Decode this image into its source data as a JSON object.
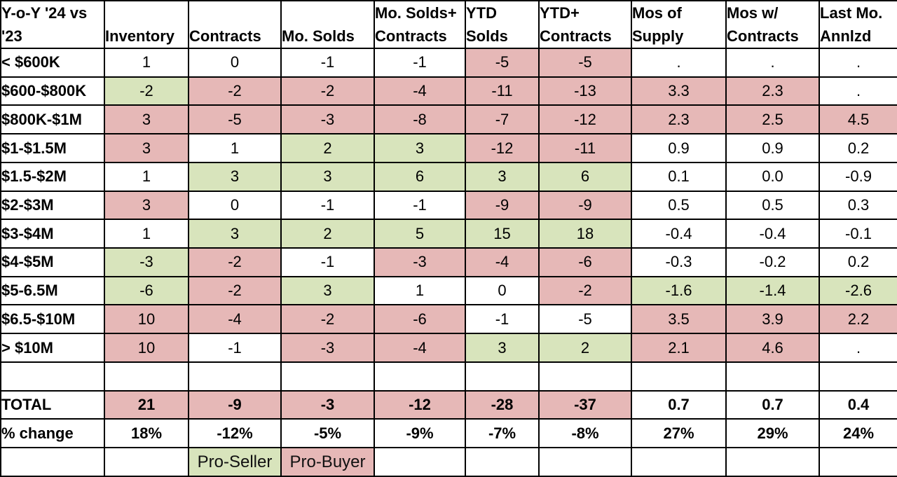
{
  "chart_data": {
    "type": "table",
    "title": "Y-o-Y '24 vs '23",
    "title_lines": [
      "Y-o-Y '24 vs",
      "'23"
    ],
    "column_headers": [
      {
        "lines": [
          "Inventory"
        ]
      },
      {
        "lines": [
          "Contracts"
        ]
      },
      {
        "lines": [
          "Mo. Solds"
        ]
      },
      {
        "lines": [
          "Mo. Solds+",
          "Contracts"
        ]
      },
      {
        "lines": [
          "YTD",
          "Solds"
        ]
      },
      {
        "lines": [
          "YTD+",
          "Contracts"
        ]
      },
      {
        "lines": [
          "Mos of",
          "Supply"
        ]
      },
      {
        "lines": [
          "Mos w/",
          "Contracts"
        ]
      },
      {
        "lines": [
          "Last Mo.",
          "Annlzd"
        ]
      }
    ],
    "rows": [
      {
        "label": "< $600K",
        "cells": [
          [
            "1",
            "w"
          ],
          [
            "0",
            "w"
          ],
          [
            "-1",
            "w"
          ],
          [
            "-1",
            "w"
          ],
          [
            "-5",
            "r"
          ],
          [
            "-5",
            "r"
          ],
          [
            ".",
            "w"
          ],
          [
            ".",
            "w"
          ],
          [
            ".",
            "w"
          ]
        ]
      },
      {
        "label": "$600-$800K",
        "cells": [
          [
            "-2",
            "g"
          ],
          [
            "-2",
            "r"
          ],
          [
            "-2",
            "r"
          ],
          [
            "-4",
            "r"
          ],
          [
            "-11",
            "r"
          ],
          [
            "-13",
            "r"
          ],
          [
            "3.3",
            "r"
          ],
          [
            "2.3",
            "r"
          ],
          [
            ".",
            "w"
          ]
        ]
      },
      {
        "label": "$800K-$1M",
        "cells": [
          [
            "3",
            "r"
          ],
          [
            "-5",
            "r"
          ],
          [
            "-3",
            "r"
          ],
          [
            "-8",
            "r"
          ],
          [
            "-7",
            "r"
          ],
          [
            "-12",
            "r"
          ],
          [
            "2.3",
            "r"
          ],
          [
            "2.5",
            "r"
          ],
          [
            "4.5",
            "r"
          ]
        ]
      },
      {
        "label": "$1-$1.5M",
        "cells": [
          [
            "3",
            "r"
          ],
          [
            "1",
            "w"
          ],
          [
            "2",
            "g"
          ],
          [
            "3",
            "g"
          ],
          [
            "-12",
            "r"
          ],
          [
            "-11",
            "r"
          ],
          [
            "0.9",
            "w"
          ],
          [
            "0.9",
            "w"
          ],
          [
            "0.2",
            "w"
          ]
        ]
      },
      {
        "label": "$1.5-$2M",
        "cells": [
          [
            "1",
            "w"
          ],
          [
            "3",
            "g"
          ],
          [
            "3",
            "g"
          ],
          [
            "6",
            "g"
          ],
          [
            "3",
            "g"
          ],
          [
            "6",
            "g"
          ],
          [
            "0.1",
            "w"
          ],
          [
            "0.0",
            "w"
          ],
          [
            "-0.9",
            "w"
          ]
        ]
      },
      {
        "label": "$2-$3M",
        "cells": [
          [
            "3",
            "r"
          ],
          [
            "0",
            "w"
          ],
          [
            "-1",
            "w"
          ],
          [
            "-1",
            "w"
          ],
          [
            "-9",
            "r"
          ],
          [
            "-9",
            "r"
          ],
          [
            "0.5",
            "w"
          ],
          [
            "0.5",
            "w"
          ],
          [
            "0.3",
            "w"
          ]
        ]
      },
      {
        "label": "$3-$4M",
        "cells": [
          [
            "1",
            "w"
          ],
          [
            "3",
            "g"
          ],
          [
            "2",
            "g"
          ],
          [
            "5",
            "g"
          ],
          [
            "15",
            "g"
          ],
          [
            "18",
            "g"
          ],
          [
            "-0.4",
            "w"
          ],
          [
            "-0.4",
            "w"
          ],
          [
            "-0.1",
            "w"
          ]
        ]
      },
      {
        "label": "$4-$5M",
        "cells": [
          [
            "-3",
            "g"
          ],
          [
            "-2",
            "r"
          ],
          [
            "-1",
            "w"
          ],
          [
            "-3",
            "r"
          ],
          [
            "-4",
            "r"
          ],
          [
            "-6",
            "r"
          ],
          [
            "-0.3",
            "w"
          ],
          [
            "-0.2",
            "w"
          ],
          [
            "0.2",
            "w"
          ]
        ]
      },
      {
        "label": "$5-6.5M",
        "cells": [
          [
            "-6",
            "g"
          ],
          [
            "-2",
            "r"
          ],
          [
            "3",
            "g"
          ],
          [
            "1",
            "w"
          ],
          [
            "0",
            "w"
          ],
          [
            "-2",
            "r"
          ],
          [
            "-1.6",
            "g"
          ],
          [
            "-1.4",
            "g"
          ],
          [
            "-2.6",
            "g"
          ]
        ]
      },
      {
        "label": "$6.5-$10M",
        "cells": [
          [
            "10",
            "r"
          ],
          [
            "-4",
            "r"
          ],
          [
            "-2",
            "r"
          ],
          [
            "-6",
            "r"
          ],
          [
            "-1",
            "w"
          ],
          [
            "-5",
            "w"
          ],
          [
            "3.5",
            "r"
          ],
          [
            "3.9",
            "r"
          ],
          [
            "2.2",
            "r"
          ]
        ]
      },
      {
        "label": "> $10M",
        "cells": [
          [
            "10",
            "r"
          ],
          [
            "-1",
            "w"
          ],
          [
            "-3",
            "r"
          ],
          [
            "-4",
            "r"
          ],
          [
            "3",
            "g"
          ],
          [
            "2",
            "g"
          ],
          [
            "2.1",
            "r"
          ],
          [
            "4.6",
            "r"
          ],
          [
            ".",
            "w"
          ]
        ]
      }
    ],
    "spacer_row": {
      "label": "",
      "cells": [
        [
          "",
          "w"
        ],
        [
          "",
          "w"
        ],
        [
          "",
          "w"
        ],
        [
          "",
          "w"
        ],
        [
          "",
          "w"
        ],
        [
          "",
          "w"
        ],
        [
          "",
          "w"
        ],
        [
          "",
          "w"
        ],
        [
          "",
          "w"
        ]
      ]
    },
    "total_row": {
      "label": "TOTAL",
      "cells": [
        [
          "21",
          "r"
        ],
        [
          "-9",
          "r"
        ],
        [
          "-3",
          "r"
        ],
        [
          "-12",
          "r"
        ],
        [
          "-28",
          "r"
        ],
        [
          "-37",
          "r"
        ],
        [
          "0.7",
          "w"
        ],
        [
          "0.7",
          "w"
        ],
        [
          "0.4",
          "w"
        ]
      ]
    },
    "pct_change_row": {
      "label": "% change",
      "cells": [
        [
          "18%",
          "w"
        ],
        [
          "-12%",
          "w"
        ],
        [
          "-5%",
          "w"
        ],
        [
          "-9%",
          "w"
        ],
        [
          "-7%",
          "w"
        ],
        [
          "-8%",
          "w"
        ],
        [
          "27%",
          "w"
        ],
        [
          "29%",
          "w"
        ],
        [
          "24%",
          "w"
        ]
      ]
    },
    "legend": {
      "pro_seller": {
        "label": "Pro-Seller",
        "bg": "g",
        "column_index": 1
      },
      "pro_buyer": {
        "label": "Pro-Buyer",
        "bg": "r",
        "column_index": 2
      }
    },
    "colors": {
      "pro_seller_green": "#d8e4bc",
      "pro_buyer_red": "#e6b8b7",
      "border_black": "#000000",
      "gridline_gray": "#ececec"
    }
  }
}
